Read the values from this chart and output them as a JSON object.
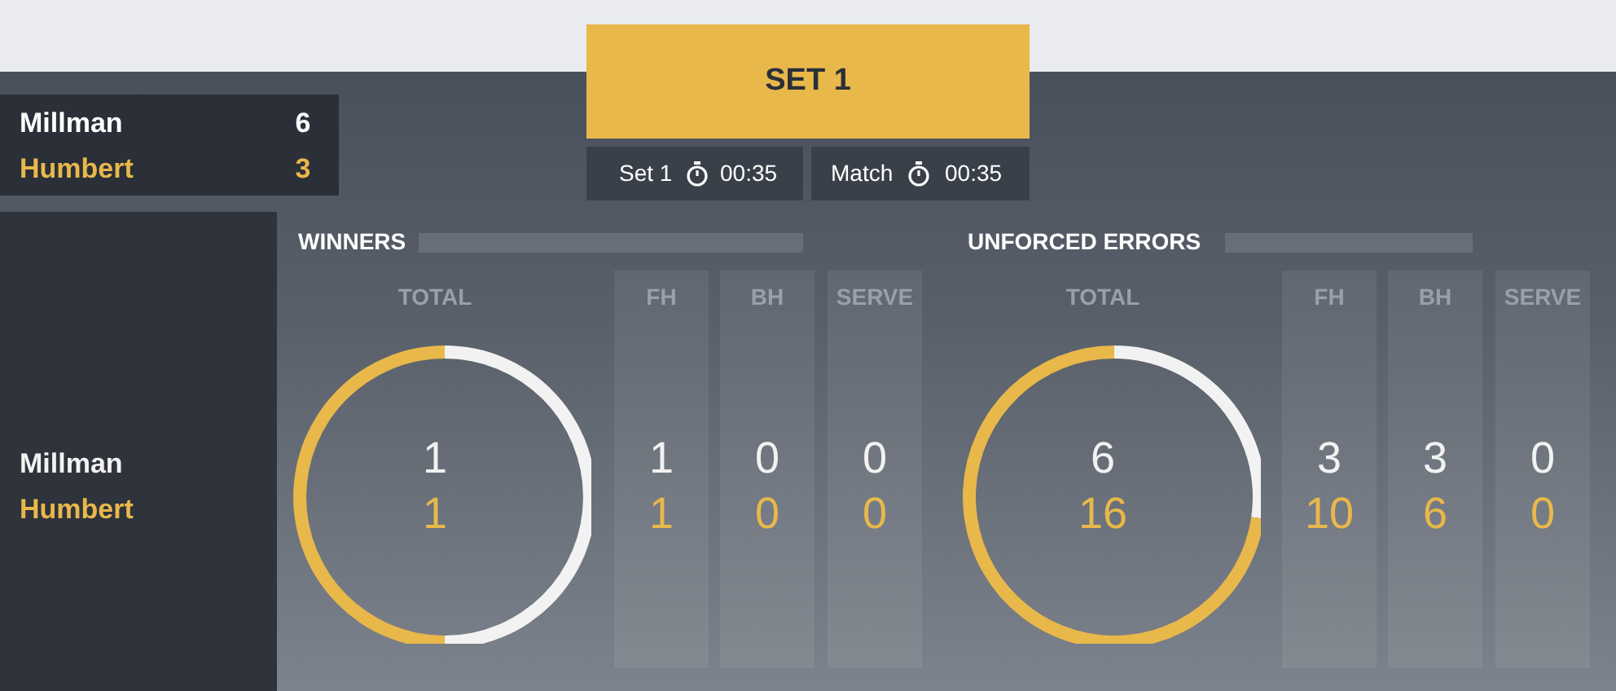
{
  "chart_data": [
    {
      "type": "other",
      "title": "SET 1",
      "annotations": [
        "Millman",
        "6",
        "Humbert",
        "3",
        "Set 1",
        "00:35",
        "Match",
        "00:35"
      ]
    },
    {
      "type": "donut",
      "title": "WINNERS",
      "categories": [
        null,
        null
      ],
      "values": [
        50,
        50
      ],
      "colors": [
        "#f2f2f2",
        "#e8b84a"
      ]
    },
    {
      "type": "other",
      "categories": [
        "TOTAL",
        "FH",
        "BH",
        "SERVE"
      ],
      "series": [
        {
          "name": "Millman",
          "color": "#f2f2f2",
          "values": [
            1,
            1,
            0,
            0
          ]
        },
        {
          "name": "Humbert",
          "color": "#e8b84a",
          "values": [
            1,
            1,
            0,
            0
          ]
        }
      ],
      "data_labels": true
    },
    {
      "type": "donut",
      "title": "UNFORCED ERRORS",
      "categories": [
        null,
        null
      ],
      "values": [
        27.3,
        72.7
      ],
      "colors": [
        "#f2f2f2",
        "#e8b84a"
      ]
    },
    {
      "type": "other",
      "categories": [
        "TOTAL",
        "FH",
        "BH",
        "SERVE"
      ],
      "series": [
        {
          "color": "#f2f2f2",
          "values": [
            6,
            3,
            3,
            0
          ]
        },
        {
          "color": "#e8b84a",
          "values": [
            16,
            10,
            6,
            0
          ]
        }
      ],
      "data_labels": true
    }
  ]
}
